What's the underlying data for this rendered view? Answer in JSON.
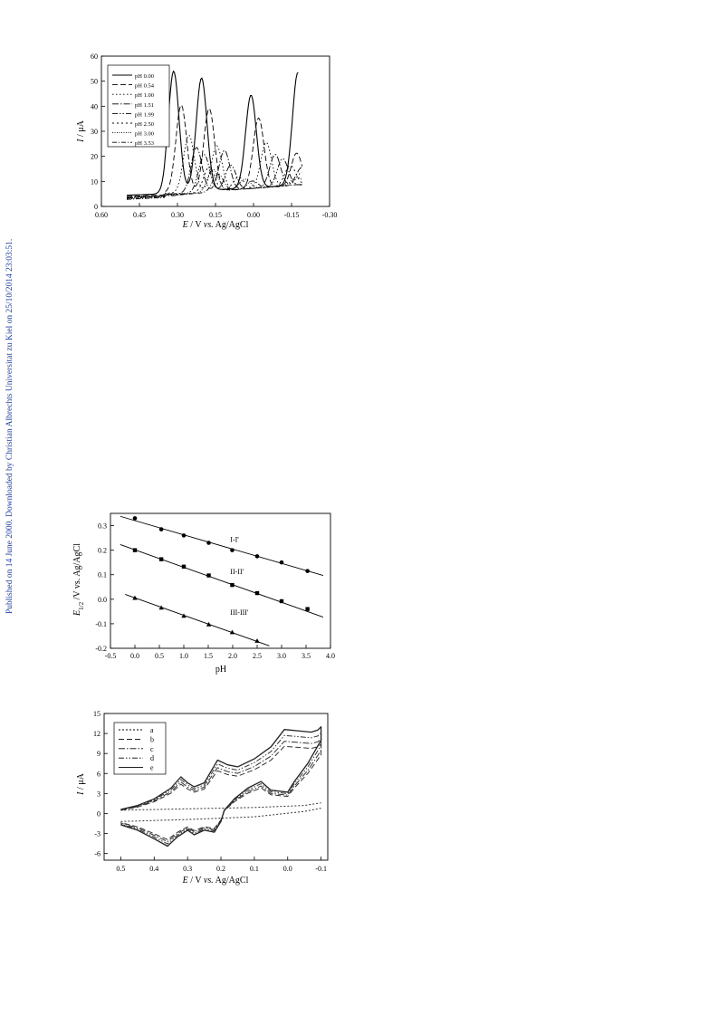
{
  "side_note": "Published on 14 June 2000. Downloaded by Christian Albrechts Universitat zu Kiel on 25/10/2014 23:03:51.",
  "chart_data": [
    {
      "type": "line",
      "xlabel_parts": [
        "E",
        " / V ",
        "vs.",
        " Ag/AgCl"
      ],
      "ylabel_parts": [
        "I",
        " / μA"
      ],
      "xlim": [
        0.6,
        -0.3
      ],
      "ylim": [
        0,
        60
      ],
      "xticks": [
        "0.60",
        "0.45",
        "0.30",
        "0.15",
        "0.00",
        "-0.15",
        "-0.30"
      ],
      "yticks": [
        "0",
        "10",
        "20",
        "30",
        "40",
        "50",
        "60"
      ],
      "legend_position": "top-left",
      "series": [
        {
          "name": "pH 0.00",
          "dash": "",
          "peaks": [
            [
              0.315,
              55
            ],
            [
              0.205,
              52
            ],
            [
              0.01,
              44
            ],
            [
              -0.175,
              52
            ]
          ],
          "end": -0.18,
          "base0": 4.5
        },
        {
          "name": "pH 0.54",
          "dash": "6,3",
          "peaks": [
            [
              0.285,
              42
            ],
            [
              0.175,
              40
            ],
            [
              -0.02,
              35
            ],
            [
              -0.17,
              20
            ]
          ],
          "end": -0.195,
          "base0": 4.0
        },
        {
          "name": "pH 1.00",
          "dash": "1.5,2.5",
          "peaks": [
            [
              0.255,
              30
            ],
            [
              0.145,
              25
            ],
            [
              -0.05,
              25
            ],
            [
              -0.19,
              12
            ]
          ],
          "end": -0.195,
          "base0": 3.8
        },
        {
          "name": "pH 1.51",
          "dash": "7,2,1.5,2",
          "peaks": [
            [
              0.225,
              25
            ],
            [
              0.115,
              23
            ],
            [
              -0.085,
              20
            ],
            [
              -0.19,
              14
            ]
          ],
          "end": -0.195,
          "base0": 3.6
        },
        {
          "name": "pH 1.99",
          "dash": "6,2,1.5,2,1.5,2",
          "peaks": [
            [
              0.195,
              22
            ],
            [
              0.09,
              17
            ],
            [
              -0.115,
              18
            ]
          ],
          "end": -0.195,
          "base0": 3.4
        },
        {
          "name": "pH 2.50",
          "dash": "2,3",
          "peaks": [
            [
              0.175,
              17
            ],
            [
              0.06,
              12
            ],
            [
              -0.145,
              15
            ]
          ],
          "end": -0.195,
          "base0": 3.2
        },
        {
          "name": "pH 3.00",
          "dash": "1,1.5",
          "peaks": [
            [
              0.16,
              16
            ],
            [
              0.035,
              11
            ],
            [
              -0.17,
              10
            ]
          ],
          "end": -0.195,
          "base0": 3.0
        },
        {
          "name": "pH 3.53",
          "dash": "5,2,1,2",
          "peaks": [
            [
              0.14,
              14
            ],
            [
              0.005,
              10
            ]
          ],
          "end": -0.195,
          "base0": 2.8
        }
      ]
    },
    {
      "type": "scatter",
      "xlabel": "pH",
      "ylabel_parts": [
        "E",
        "1/2",
        " /V vs. Ag/AgCl"
      ],
      "xlim": [
        -0.5,
        4.0
      ],
      "ylim": [
        -0.2,
        0.35
      ],
      "xticks": [
        "-0.5",
        "0.0",
        "0.5",
        "1.0",
        "1.5",
        "2.0",
        "2.5",
        "3.0",
        "3.5",
        "4.0"
      ],
      "yticks": [
        "-0.2",
        "-0.1",
        "0.0",
        "0.1",
        "0.2",
        "0.3"
      ],
      "series": [
        {
          "name": "I-I'",
          "marker": "circle",
          "label_at": [
            1.95,
            0.233
          ],
          "x": [
            0.0,
            0.54,
            1.0,
            1.51,
            1.99,
            2.5,
            3.0,
            3.53
          ],
          "y": [
            0.33,
            0.285,
            0.26,
            0.23,
            0.2,
            0.175,
            0.15,
            0.115
          ],
          "fit": [
            [
              -0.3,
              0.338
            ],
            [
              3.85,
              0.097
            ]
          ]
        },
        {
          "name": "II-II'",
          "marker": "square",
          "label_at": [
            1.95,
            0.103
          ],
          "x": [
            0.0,
            0.54,
            1.0,
            1.51,
            1.99,
            2.5,
            3.0,
            3.53
          ],
          "y": [
            0.2,
            0.163,
            0.133,
            0.097,
            0.058,
            0.025,
            -0.008,
            -0.04
          ],
          "fit": [
            [
              -0.3,
              0.223
            ],
            [
              3.85,
              -0.073
            ]
          ]
        },
        {
          "name": "III-III'",
          "marker": "triangle",
          "label_at": [
            1.95,
            -0.063
          ],
          "x": [
            0.0,
            0.54,
            1.0,
            1.51,
            1.99,
            2.5
          ],
          "y": [
            0.005,
            -0.035,
            -0.068,
            -0.103,
            -0.135,
            -0.17
          ],
          "fit": [
            [
              -0.2,
              0.02
            ],
            [
              2.75,
              -0.19
            ]
          ]
        }
      ]
    },
    {
      "type": "line",
      "xlabel_parts": [
        "E",
        " / V ",
        "vs.",
        " Ag/AgCl"
      ],
      "ylabel_parts": [
        "I",
        " / μA"
      ],
      "xlim": [
        0.55,
        -0.12
      ],
      "ylim": [
        -7,
        15
      ],
      "xticks": [
        "0.5",
        "0.4",
        "0.3",
        "0.2",
        "0.1",
        "0.0",
        "-0.1"
      ],
      "xtick_values": [
        0.5,
        0.4,
        0.3,
        0.2,
        0.1,
        0.0,
        -0.1
      ],
      "yticks": [
        "-6",
        "-3",
        "0",
        "3",
        "6",
        "9",
        "12",
        "15"
      ],
      "legend_position": "top-left",
      "series": [
        {
          "name": "a",
          "dash": "2,2",
          "upper": [
            [
              0.5,
              0.5
            ],
            [
              0.3,
              0.7
            ],
            [
              0.1,
              0.9
            ],
            [
              -0.05,
              1.2
            ],
            [
              -0.1,
              1.6
            ]
          ],
          "lower": [
            [
              0.5,
              -1.2
            ],
            [
              0.3,
              -0.9
            ],
            [
              0.1,
              -0.5
            ],
            [
              -0.05,
              0.3
            ],
            [
              -0.1,
              0.8
            ]
          ]
        },
        {
          "name": "b",
          "dash": "6,3",
          "scale": 0.8
        },
        {
          "name": "c",
          "dash": "7,2,1.5,2",
          "scale": 0.86
        },
        {
          "name": "d",
          "dash": "6,2,1.5,2,1.5,2",
          "scale": 0.93
        },
        {
          "name": "e",
          "dash": "",
          "scale": 1.0
        }
      ],
      "cv_upper": [
        [
          0.5,
          0.6
        ],
        [
          0.45,
          1.2
        ],
        [
          0.4,
          2.2
        ],
        [
          0.35,
          3.8
        ],
        [
          0.32,
          5.5
        ],
        [
          0.3,
          4.6
        ],
        [
          0.28,
          4.0
        ],
        [
          0.25,
          4.6
        ],
        [
          0.21,
          8.0
        ],
        [
          0.18,
          7.3
        ],
        [
          0.15,
          7.0
        ],
        [
          0.1,
          8.2
        ],
        [
          0.05,
          10.0
        ],
        [
          0.01,
          12.6
        ],
        [
          -0.03,
          12.4
        ],
        [
          -0.07,
          12.2
        ],
        [
          -0.09,
          12.5
        ],
        [
          -0.1,
          13.0
        ]
      ],
      "cv_lower": [
        [
          -0.1,
          11.0
        ],
        [
          -0.06,
          7.5
        ],
        [
          -0.02,
          4.8
        ],
        [
          0.0,
          3.2
        ],
        [
          0.05,
          3.5
        ],
        [
          0.08,
          4.8
        ],
        [
          0.12,
          3.8
        ],
        [
          0.16,
          2.2
        ],
        [
          0.19,
          0.5
        ],
        [
          0.2,
          -1.2
        ],
        [
          0.22,
          -2.8
        ],
        [
          0.25,
          -2.5
        ],
        [
          0.28,
          -3.2
        ],
        [
          0.3,
          -2.5
        ],
        [
          0.33,
          -3.5
        ],
        [
          0.36,
          -4.9
        ],
        [
          0.4,
          -3.8
        ],
        [
          0.45,
          -2.5
        ],
        [
          0.5,
          -1.7
        ]
      ]
    }
  ]
}
